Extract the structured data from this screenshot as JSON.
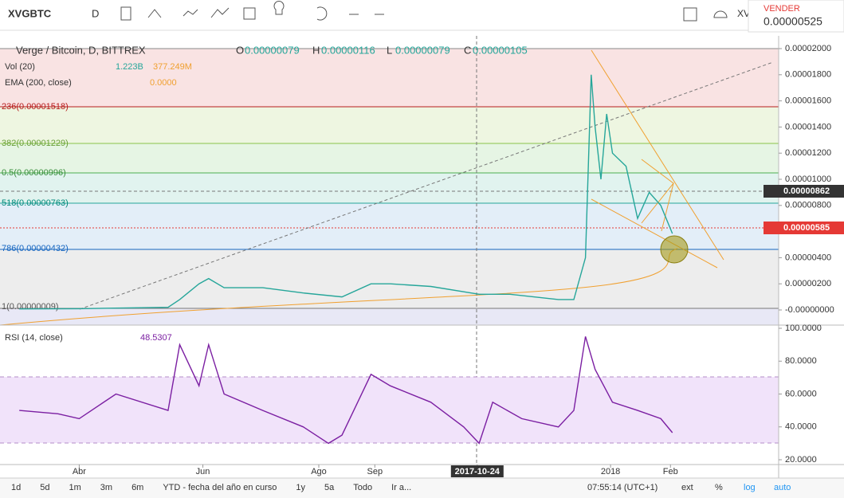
{
  "toolbar": {
    "symbol": "XVGBTC",
    "interval": "D",
    "compare": "XV",
    "sell_label": "VENDER",
    "sell_price": "0.00000525"
  },
  "legend": {
    "title": "Verge / Bitcoin, D, BITTREX",
    "o_label": "O",
    "o": "0.00000079",
    "h_label": "H",
    "h": "0.00000116",
    "l_label": "L",
    "l": "0.00000079",
    "c_label": "C",
    "c": "0.00000105",
    "vol_name": "Vol (20)",
    "vol_1": "1.223B",
    "vol_2": "377.249M",
    "ema_name": "EMA (200, close)",
    "ema": "0.0000"
  },
  "fib_labels": [
    "236(0.00001518)",
    "382(0.00001229)",
    "0.5(0.00000996)",
    "518(0.00000763)",
    "786(0.00000432)",
    "1(0.00000009)"
  ],
  "price_badges": [
    "0.00000862",
    "0.00000585"
  ],
  "price_chart": {
    "type": "line",
    "color": "#26a69a",
    "xlim": [
      -10,
      393
    ],
    "ylim": [
      0,
      2e-05
    ],
    "yticks": [
      {
        "value": 2e-05,
        "label": "0.00002000"
      },
      {
        "value": 1.8e-05,
        "label": "0.00001800"
      },
      {
        "value": 1.6e-05,
        "label": "0.00001600"
      },
      {
        "value": 1.4e-05,
        "label": "0.00001400"
      },
      {
        "value": 1.2e-05,
        "label": "0.00001200"
      },
      {
        "value": 1e-05,
        "label": "0.00001000"
      },
      {
        "value": 8e-06,
        "label": "0.00000800"
      },
      {
        "value": 4e-06,
        "label": "0.00000400"
      },
      {
        "value": 2e-06,
        "label": "0.00000200"
      },
      {
        "value": 0,
        "label": "-0.00000000"
      }
    ],
    "x": [
      0,
      31,
      77,
      83,
      93,
      98,
      106,
      126,
      147,
      167,
      182,
      192,
      213,
      238,
      254,
      279,
      287,
      293,
      296,
      298,
      301,
      304,
      307,
      314,
      320,
      326,
      332,
      338
    ],
    "values": [
      8e-08,
      1e-07,
      2e-07,
      8e-07,
      2e-06,
      2.4e-06,
      1.7e-06,
      1.7e-06,
      1.3e-06,
      1e-06,
      2e-06,
      2e-06,
      1.8e-06,
      1.2e-06,
      1.2e-06,
      8e-07,
      8e-07,
      4e-06,
      1.8e-05,
      1.4e-05,
      1e-05,
      1.5e-05,
      1.2e-05,
      1.1e-05,
      7e-06,
      9e-06,
      8e-06,
      5.85e-06
    ]
  },
  "rsi_chart": {
    "type": "line",
    "name": "RSI (14, close)",
    "value_label": "48.5307",
    "color": "#7b1fa2",
    "ylim": [
      20,
      100
    ],
    "yticks": [
      {
        "value": 100,
        "label": "100.0000"
      },
      {
        "value": 80,
        "label": "80.0000"
      },
      {
        "value": 60,
        "label": "60.0000"
      },
      {
        "value": 40,
        "label": "40.0000"
      },
      {
        "value": 20,
        "label": "20.0000"
      }
    ],
    "x": [
      0,
      20,
      31,
      50,
      77,
      83,
      93,
      98,
      106,
      126,
      147,
      160,
      167,
      182,
      192,
      213,
      230,
      238,
      245,
      260,
      279,
      287,
      293,
      298,
      307,
      320,
      332,
      338
    ],
    "values": [
      50,
      48,
      45,
      60,
      50,
      90,
      65,
      90,
      60,
      50,
      40,
      30,
      35,
      72,
      65,
      55,
      40,
      30,
      55,
      45,
      40,
      50,
      95,
      75,
      55,
      50,
      45,
      36.5
    ]
  },
  "time_axis": [
    {
      "value": 31,
      "label": "Abr"
    },
    {
      "value": 95,
      "label": "Jun"
    },
    {
      "value": 155,
      "label": "Ago"
    },
    {
      "value": 184,
      "label": "Sep"
    },
    {
      "value": 237,
      "label": "2017-10-24"
    },
    {
      "value": 306,
      "label": "2018"
    },
    {
      "value": 337,
      "label": "Feb"
    }
  ],
  "bottom_bar": {
    "ranges": [
      "1d",
      "5d",
      "1m",
      "3m",
      "6m",
      "YTD - fecha del año en curso",
      "1y",
      "5a",
      "Todo",
      "Ir a..."
    ],
    "clock": "07:55:14 (UTC+1)",
    "options": [
      "ext",
      "%",
      "log",
      "auto"
    ]
  }
}
